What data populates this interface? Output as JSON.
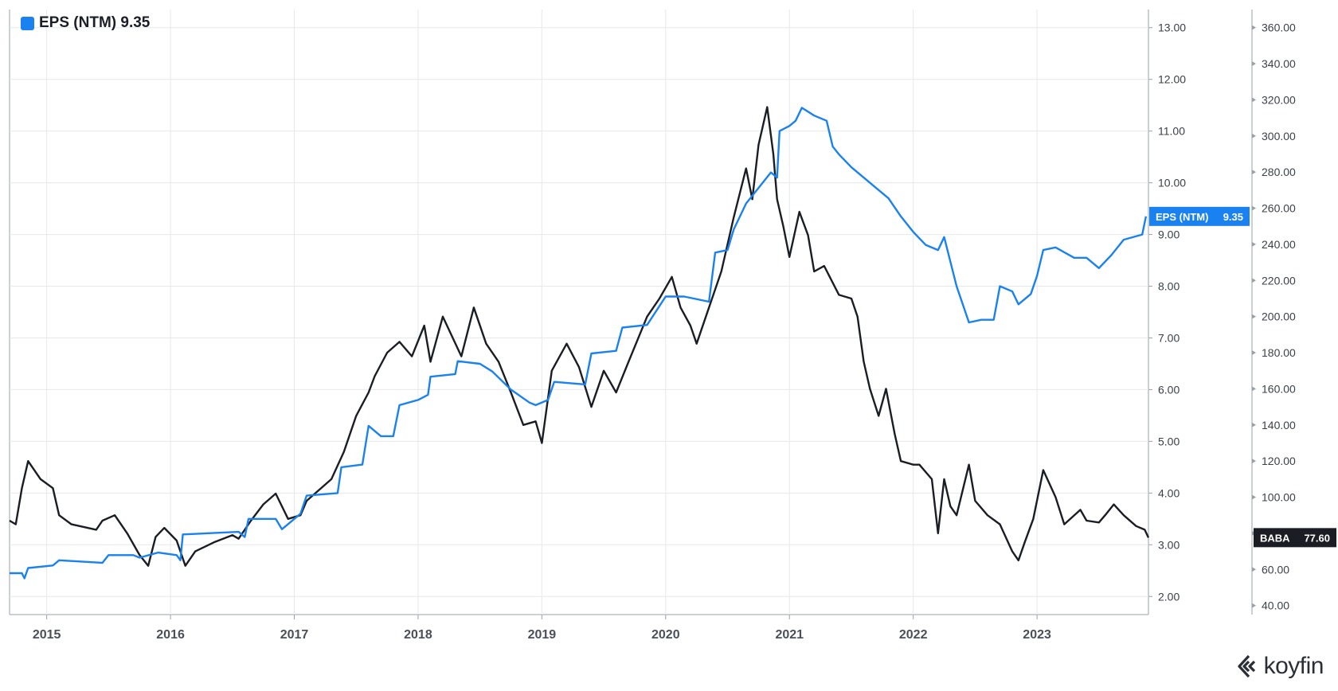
{
  "legend": {
    "label": "EPS (NTM) 9.35",
    "color": "#1a82f0"
  },
  "brand": {
    "name": "koyfin",
    "icon": "koyfin-logo-icon"
  },
  "chart_data": {
    "type": "line",
    "x_ticks": [
      "2015",
      "2016",
      "2017",
      "2018",
      "2019",
      "2020",
      "2021",
      "2022",
      "2023"
    ],
    "x_range": [
      2014.7,
      2023.9
    ],
    "grid": true,
    "axes": [
      {
        "id": "eps",
        "side": "right",
        "range": [
          1.65,
          13.35
        ],
        "ticks": [
          "13.00",
          "12.00",
          "11.00",
          "10.00",
          "9.00",
          "8.00",
          "7.00",
          "6.00",
          "5.00",
          "4.00",
          "3.00",
          "2.00"
        ]
      },
      {
        "id": "price",
        "side": "right-outer",
        "range": [
          35,
          370
        ],
        "ticks": [
          "360.00",
          "340.00",
          "320.00",
          "300.00",
          "280.00",
          "260.00",
          "240.00",
          "220.00",
          "200.00",
          "180.00",
          "160.00",
          "140.00",
          "120.00",
          "100.00",
          "80.00",
          "60.00",
          "40.00"
        ]
      }
    ],
    "series": [
      {
        "name": "EPS (NTM)",
        "axis": "eps",
        "color": "#1a82f0",
        "last_label": "EPS (NTM)",
        "last_value": "9.35",
        "points": [
          [
            2014.7,
            2.45
          ],
          [
            2014.8,
            2.45
          ],
          [
            2014.82,
            2.35
          ],
          [
            2014.85,
            2.55
          ],
          [
            2015.05,
            2.6
          ],
          [
            2015.1,
            2.7
          ],
          [
            2015.45,
            2.65
          ],
          [
            2015.5,
            2.8
          ],
          [
            2015.7,
            2.8
          ],
          [
            2015.75,
            2.75
          ],
          [
            2015.9,
            2.85
          ],
          [
            2016.05,
            2.8
          ],
          [
            2016.08,
            2.7
          ],
          [
            2016.1,
            3.2
          ],
          [
            2016.55,
            3.25
          ],
          [
            2016.6,
            3.15
          ],
          [
            2016.63,
            3.5
          ],
          [
            2016.85,
            3.5
          ],
          [
            2016.9,
            3.3
          ],
          [
            2017.05,
            3.6
          ],
          [
            2017.1,
            3.95
          ],
          [
            2017.35,
            4.0
          ],
          [
            2017.38,
            4.5
          ],
          [
            2017.55,
            4.55
          ],
          [
            2017.6,
            5.3
          ],
          [
            2017.7,
            5.1
          ],
          [
            2017.8,
            5.1
          ],
          [
            2017.85,
            5.7
          ],
          [
            2018.0,
            5.8
          ],
          [
            2018.08,
            5.9
          ],
          [
            2018.1,
            6.25
          ],
          [
            2018.3,
            6.3
          ],
          [
            2018.32,
            6.55
          ],
          [
            2018.5,
            6.5
          ],
          [
            2018.6,
            6.35
          ],
          [
            2018.75,
            6.0
          ],
          [
            2018.9,
            5.75
          ],
          [
            2018.95,
            5.7
          ],
          [
            2019.05,
            5.8
          ],
          [
            2019.1,
            6.15
          ],
          [
            2019.35,
            6.1
          ],
          [
            2019.4,
            6.7
          ],
          [
            2019.6,
            6.75
          ],
          [
            2019.65,
            7.2
          ],
          [
            2019.85,
            7.25
          ],
          [
            2020.0,
            7.8
          ],
          [
            2020.15,
            7.8
          ],
          [
            2020.35,
            7.7
          ],
          [
            2020.4,
            8.65
          ],
          [
            2020.5,
            8.7
          ],
          [
            2020.55,
            9.1
          ],
          [
            2020.65,
            9.6
          ],
          [
            2020.75,
            9.9
          ],
          [
            2020.85,
            10.2
          ],
          [
            2020.9,
            10.1
          ],
          [
            2020.92,
            11.0
          ],
          [
            2021.0,
            11.1
          ],
          [
            2021.05,
            11.2
          ],
          [
            2021.1,
            11.45
          ],
          [
            2021.2,
            11.3
          ],
          [
            2021.3,
            11.2
          ],
          [
            2021.35,
            10.7
          ],
          [
            2021.4,
            10.55
          ],
          [
            2021.5,
            10.3
          ],
          [
            2021.6,
            10.1
          ],
          [
            2021.7,
            9.9
          ],
          [
            2021.8,
            9.7
          ],
          [
            2021.9,
            9.35
          ],
          [
            2022.0,
            9.05
          ],
          [
            2022.1,
            8.8
          ],
          [
            2022.2,
            8.7
          ],
          [
            2022.25,
            8.95
          ],
          [
            2022.35,
            8.0
          ],
          [
            2022.45,
            7.3
          ],
          [
            2022.55,
            7.35
          ],
          [
            2022.65,
            7.35
          ],
          [
            2022.7,
            8.0
          ],
          [
            2022.8,
            7.9
          ],
          [
            2022.85,
            7.65
          ],
          [
            2022.95,
            7.85
          ],
          [
            2023.0,
            8.2
          ],
          [
            2023.05,
            8.7
          ],
          [
            2023.15,
            8.75
          ],
          [
            2023.3,
            8.55
          ],
          [
            2023.4,
            8.55
          ],
          [
            2023.5,
            8.35
          ],
          [
            2023.6,
            8.6
          ],
          [
            2023.7,
            8.9
          ],
          [
            2023.85,
            9.0
          ],
          [
            2023.88,
            9.35
          ]
        ]
      },
      {
        "name": "BABA",
        "axis": "price",
        "color": "#1b1d24",
        "last_label": "BABA",
        "last_value": "77.60",
        "points": [
          [
            2014.7,
            87
          ],
          [
            2014.75,
            85
          ],
          [
            2014.8,
            105
          ],
          [
            2014.85,
            120
          ],
          [
            2014.95,
            110
          ],
          [
            2015.05,
            105
          ],
          [
            2015.1,
            90
          ],
          [
            2015.2,
            85
          ],
          [
            2015.4,
            82
          ],
          [
            2015.45,
            87
          ],
          [
            2015.55,
            90
          ],
          [
            2015.65,
            80
          ],
          [
            2015.75,
            68
          ],
          [
            2015.82,
            62
          ],
          [
            2015.88,
            78
          ],
          [
            2015.95,
            83
          ],
          [
            2016.05,
            76
          ],
          [
            2016.12,
            62
          ],
          [
            2016.2,
            70
          ],
          [
            2016.35,
            75
          ],
          [
            2016.5,
            79
          ],
          [
            2016.55,
            77
          ],
          [
            2016.65,
            87
          ],
          [
            2016.75,
            96
          ],
          [
            2016.85,
            102
          ],
          [
            2016.95,
            88
          ],
          [
            2017.05,
            90
          ],
          [
            2017.1,
            98
          ],
          [
            2017.3,
            110
          ],
          [
            2017.4,
            125
          ],
          [
            2017.5,
            145
          ],
          [
            2017.6,
            158
          ],
          [
            2017.65,
            167
          ],
          [
            2017.75,
            180
          ],
          [
            2017.85,
            186
          ],
          [
            2017.95,
            178
          ],
          [
            2018.05,
            195
          ],
          [
            2018.1,
            175
          ],
          [
            2018.2,
            200
          ],
          [
            2018.35,
            178
          ],
          [
            2018.45,
            205
          ],
          [
            2018.55,
            185
          ],
          [
            2018.65,
            175
          ],
          [
            2018.75,
            158
          ],
          [
            2018.85,
            140
          ],
          [
            2018.95,
            142
          ],
          [
            2019.0,
            130
          ],
          [
            2019.08,
            170
          ],
          [
            2019.2,
            185
          ],
          [
            2019.3,
            172
          ],
          [
            2019.4,
            150
          ],
          [
            2019.5,
            170
          ],
          [
            2019.6,
            158
          ],
          [
            2019.7,
            175
          ],
          [
            2019.85,
            200
          ],
          [
            2019.95,
            210
          ],
          [
            2020.05,
            222
          ],
          [
            2020.12,
            205
          ],
          [
            2020.2,
            195
          ],
          [
            2020.25,
            185
          ],
          [
            2020.35,
            205
          ],
          [
            2020.45,
            225
          ],
          [
            2020.55,
            255
          ],
          [
            2020.65,
            282
          ],
          [
            2020.7,
            265
          ],
          [
            2020.75,
            295
          ],
          [
            2020.82,
            316
          ],
          [
            2020.87,
            290
          ],
          [
            2020.9,
            265
          ],
          [
            2020.95,
            250
          ],
          [
            2021.0,
            233
          ],
          [
            2021.08,
            258
          ],
          [
            2021.15,
            245
          ],
          [
            2021.2,
            225
          ],
          [
            2021.28,
            228
          ],
          [
            2021.4,
            212
          ],
          [
            2021.5,
            210
          ],
          [
            2021.55,
            200
          ],
          [
            2021.6,
            175
          ],
          [
            2021.65,
            160
          ],
          [
            2021.72,
            145
          ],
          [
            2021.78,
            160
          ],
          [
            2021.85,
            135
          ],
          [
            2021.9,
            120
          ],
          [
            2022.0,
            118
          ],
          [
            2022.05,
            118
          ],
          [
            2022.15,
            110
          ],
          [
            2022.2,
            80
          ],
          [
            2022.25,
            110
          ],
          [
            2022.3,
            95
          ],
          [
            2022.35,
            90
          ],
          [
            2022.45,
            118
          ],
          [
            2022.5,
            98
          ],
          [
            2022.6,
            90
          ],
          [
            2022.7,
            85
          ],
          [
            2022.8,
            70
          ],
          [
            2022.85,
            65
          ],
          [
            2022.9,
            75
          ],
          [
            2022.97,
            88
          ],
          [
            2023.05,
            115
          ],
          [
            2023.15,
            100
          ],
          [
            2023.22,
            85
          ],
          [
            2023.35,
            93
          ],
          [
            2023.4,
            87
          ],
          [
            2023.5,
            86
          ],
          [
            2023.55,
            90
          ],
          [
            2023.62,
            96
          ],
          [
            2023.7,
            90
          ],
          [
            2023.8,
            84
          ],
          [
            2023.87,
            82
          ],
          [
            2023.9,
            77.6
          ]
        ]
      }
    ]
  }
}
